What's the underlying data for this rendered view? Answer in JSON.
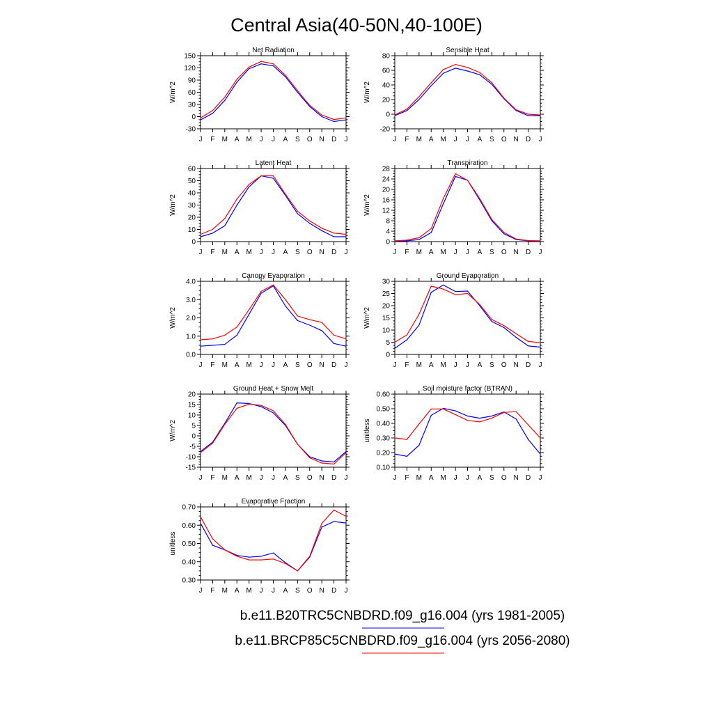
{
  "title": "Central Asia(40-50N,40-100E)",
  "colors": {
    "series_1": "#0000ff",
    "series_2": "#ff0000"
  },
  "legend": {
    "placement": "bottom-center",
    "entries": [
      {
        "label": "b.e11.B20TRC5CNBDRD.f09_g16.004 (yrs 1981-2005)",
        "color": "#0000ff"
      },
      {
        "label": "b.e11.BRCP85C5CNBDRD.f09_g16.004 (yrs 2056-2080)",
        "color": "#ff0000"
      }
    ]
  },
  "chart_data": [
    {
      "type": "line",
      "title": "Net Radiation",
      "ylabel": "W/m^2",
      "categories": [
        "J",
        "F",
        "M",
        "A",
        "M",
        "J",
        "J",
        "A",
        "S",
        "O",
        "N",
        "D",
        "J"
      ],
      "ylim": [
        -30,
        150
      ],
      "yticks": [
        -30,
        0,
        30,
        60,
        90,
        120,
        150
      ],
      "ytick_labels": [
        "-30",
        "0",
        "30",
        "60",
        "90",
        "120",
        "150"
      ],
      "grid": false,
      "series": [
        {
          "color": "#0000ff",
          "values": [
            -8,
            8,
            40,
            85,
            118,
            130,
            125,
            98,
            60,
            25,
            0,
            -12,
            -8
          ]
        },
        {
          "color": "#ff0000",
          "values": [
            -3,
            15,
            48,
            92,
            122,
            136,
            130,
            102,
            64,
            28,
            4,
            -7,
            -3
          ]
        }
      ]
    },
    {
      "type": "line",
      "title": "Sensible Heat",
      "ylabel": "W/m^2",
      "categories": [
        "J",
        "F",
        "M",
        "A",
        "M",
        "J",
        "J",
        "A",
        "S",
        "O",
        "N",
        "D",
        "J"
      ],
      "ylim": [
        -20,
        80
      ],
      "yticks": [
        -20,
        0,
        20,
        40,
        60,
        80
      ],
      "ytick_labels": [
        "-20",
        "0",
        "20",
        "40",
        "60",
        "80"
      ],
      "grid": false,
      "series": [
        {
          "color": "#0000ff",
          "values": [
            -2,
            5,
            20,
            39,
            56,
            63,
            59,
            54,
            41,
            21,
            5,
            -2,
            -2
          ]
        },
        {
          "color": "#ff0000",
          "values": [
            -1,
            7,
            24,
            43,
            61,
            68,
            64,
            57,
            43,
            22,
            6,
            0,
            -1
          ]
        }
      ]
    },
    {
      "type": "line",
      "title": "Latent Heat",
      "ylabel": "W/m^2",
      "categories": [
        "J",
        "F",
        "M",
        "A",
        "M",
        "J",
        "J",
        "A",
        "S",
        "O",
        "N",
        "D",
        "J"
      ],
      "ylim": [
        0,
        60
      ],
      "yticks": [
        0,
        10,
        20,
        30,
        40,
        50,
        60
      ],
      "ytick_labels": [
        "0",
        "10",
        "20",
        "30",
        "40",
        "50",
        "60"
      ],
      "grid": false,
      "series": [
        {
          "color": "#0000ff",
          "values": [
            4,
            7,
            13,
            30,
            45,
            54,
            52,
            38,
            23,
            15,
            9,
            4,
            4
          ]
        },
        {
          "color": "#ff0000",
          "values": [
            6,
            10,
            19,
            35,
            47,
            54,
            54,
            39,
            25,
            17,
            11,
            7,
            6
          ]
        }
      ]
    },
    {
      "type": "line",
      "title": "Transpiration",
      "ylabel": "W/m^2",
      "categories": [
        "J",
        "F",
        "M",
        "A",
        "M",
        "J",
        "J",
        "A",
        "S",
        "O",
        "N",
        "D",
        "J"
      ],
      "ylim": [
        0,
        28
      ],
      "yticks": [
        0,
        4,
        8,
        12,
        16,
        20,
        24,
        28
      ],
      "ytick_labels": [
        "0",
        "4",
        "8",
        "12",
        "16",
        "20",
        "24",
        "28"
      ],
      "grid": false,
      "series": [
        {
          "color": "#0000ff",
          "values": [
            0.2,
            0.3,
            0.8,
            3.5,
            14.5,
            25,
            23.5,
            16,
            8,
            3,
            0.8,
            0.3,
            0.2
          ]
        },
        {
          "color": "#ff0000",
          "values": [
            0.3,
            0.6,
            1.5,
            5,
            16.5,
            26,
            23.5,
            16.5,
            8.5,
            3.5,
            1,
            0.4,
            0.3
          ]
        }
      ]
    },
    {
      "type": "line",
      "title": "Canopy Evaporation",
      "ylabel": "W/m^2",
      "categories": [
        "J",
        "F",
        "M",
        "A",
        "M",
        "J",
        "J",
        "A",
        "S",
        "O",
        "N",
        "D",
        "J"
      ],
      "ylim": [
        0.0,
        4.0
      ],
      "yticks": [
        0,
        1,
        2,
        3,
        4
      ],
      "ytick_labels": [
        "0.0",
        "1.0",
        "2.0",
        "3.0",
        "4.0"
      ],
      "grid": false,
      "series": [
        {
          "color": "#0000ff",
          "values": [
            0.45,
            0.5,
            0.55,
            1.05,
            2.2,
            3.35,
            3.75,
            2.65,
            1.85,
            1.6,
            1.3,
            0.6,
            0.45
          ]
        },
        {
          "color": "#ff0000",
          "values": [
            0.8,
            0.85,
            1.05,
            1.5,
            2.45,
            3.45,
            3.8,
            3.0,
            2.1,
            1.9,
            1.75,
            1.05,
            0.85
          ]
        }
      ]
    },
    {
      "type": "line",
      "title": "Ground Evaporation",
      "ylabel": "W/m^2",
      "categories": [
        "J",
        "F",
        "M",
        "A",
        "M",
        "J",
        "J",
        "A",
        "S",
        "O",
        "N",
        "D",
        "J"
      ],
      "ylim": [
        0,
        30
      ],
      "yticks": [
        0,
        5,
        10,
        15,
        20,
        25,
        30
      ],
      "ytick_labels": [
        "0",
        "5",
        "10",
        "15",
        "20",
        "25",
        "30"
      ],
      "grid": false,
      "series": [
        {
          "color": "#0000ff",
          "values": [
            2.5,
            6,
            12,
            25.5,
            28.5,
            25.8,
            26,
            20,
            13.5,
            11,
            7,
            3.5,
            3
          ]
        },
        {
          "color": "#ff0000",
          "values": [
            5,
            8,
            16.5,
            28,
            26.8,
            24.5,
            25,
            20.5,
            14.3,
            11.8,
            8.5,
            5.3,
            4.8
          ]
        }
      ]
    },
    {
      "type": "line",
      "title": "Ground Heat + Snow Melt",
      "ylabel": "W/m^2",
      "categories": [
        "J",
        "F",
        "M",
        "A",
        "M",
        "J",
        "J",
        "A",
        "S",
        "O",
        "N",
        "D",
        "J"
      ],
      "ylim": [
        -15,
        20
      ],
      "yticks": [
        -15,
        -10,
        -5,
        0,
        5,
        10,
        15,
        20
      ],
      "ytick_labels": [
        "-15",
        "-10",
        "-5",
        "0",
        "5",
        "10",
        "15",
        "20"
      ],
      "grid": false,
      "series": [
        {
          "color": "#0000ff",
          "values": [
            -7.5,
            -3,
            6,
            15.8,
            15.5,
            14,
            11,
            5,
            -4,
            -10,
            -12,
            -12.5,
            -7.5
          ]
        },
        {
          "color": "#ff0000",
          "values": [
            -8,
            -3.5,
            5.5,
            13.2,
            15.2,
            14.6,
            12,
            5.5,
            -4,
            -10.5,
            -13,
            -13.5,
            -8
          ]
        }
      ]
    },
    {
      "type": "line",
      "title": "Soil moisture factor (BTRAN)",
      "ylabel": "unitless",
      "categories": [
        "J",
        "F",
        "M",
        "A",
        "M",
        "J",
        "J",
        "A",
        "S",
        "O",
        "N",
        "D",
        "J"
      ],
      "ylim": [
        0.1,
        0.6
      ],
      "yticks": [
        0.1,
        0.2,
        0.3,
        0.4,
        0.5,
        0.6
      ],
      "ytick_labels": [
        "0.10",
        "0.20",
        "0.30",
        "0.40",
        "0.50",
        "0.60"
      ],
      "grid": false,
      "series": [
        {
          "color": "#0000ff",
          "values": [
            0.19,
            0.175,
            0.25,
            0.455,
            0.503,
            0.485,
            0.45,
            0.435,
            0.45,
            0.478,
            0.43,
            0.29,
            0.19
          ]
        },
        {
          "color": "#ff0000",
          "values": [
            0.3,
            0.29,
            0.395,
            0.498,
            0.498,
            0.46,
            0.42,
            0.41,
            0.435,
            0.475,
            0.48,
            0.39,
            0.3
          ]
        }
      ]
    },
    {
      "type": "line",
      "title": "Evaporative Fraction",
      "ylabel": "unitless",
      "categories": [
        "J",
        "F",
        "M",
        "A",
        "M",
        "J",
        "J",
        "A",
        "S",
        "O",
        "N",
        "D",
        "J"
      ],
      "ylim": [
        0.3,
        0.7
      ],
      "yticks": [
        0.3,
        0.4,
        0.5,
        0.6,
        0.7
      ],
      "ytick_labels": [
        "0.30",
        "0.40",
        "0.50",
        "0.60",
        "0.70"
      ],
      "grid": false,
      "series": [
        {
          "color": "#0000ff",
          "values": [
            0.61,
            0.49,
            0.465,
            0.435,
            0.425,
            0.43,
            0.448,
            0.395,
            0.35,
            0.425,
            0.59,
            0.62,
            0.612
          ]
        },
        {
          "color": "#ff0000",
          "values": [
            0.645,
            0.525,
            0.465,
            0.43,
            0.41,
            0.41,
            0.415,
            0.39,
            0.35,
            0.43,
            0.61,
            0.683,
            0.648
          ]
        }
      ]
    }
  ]
}
